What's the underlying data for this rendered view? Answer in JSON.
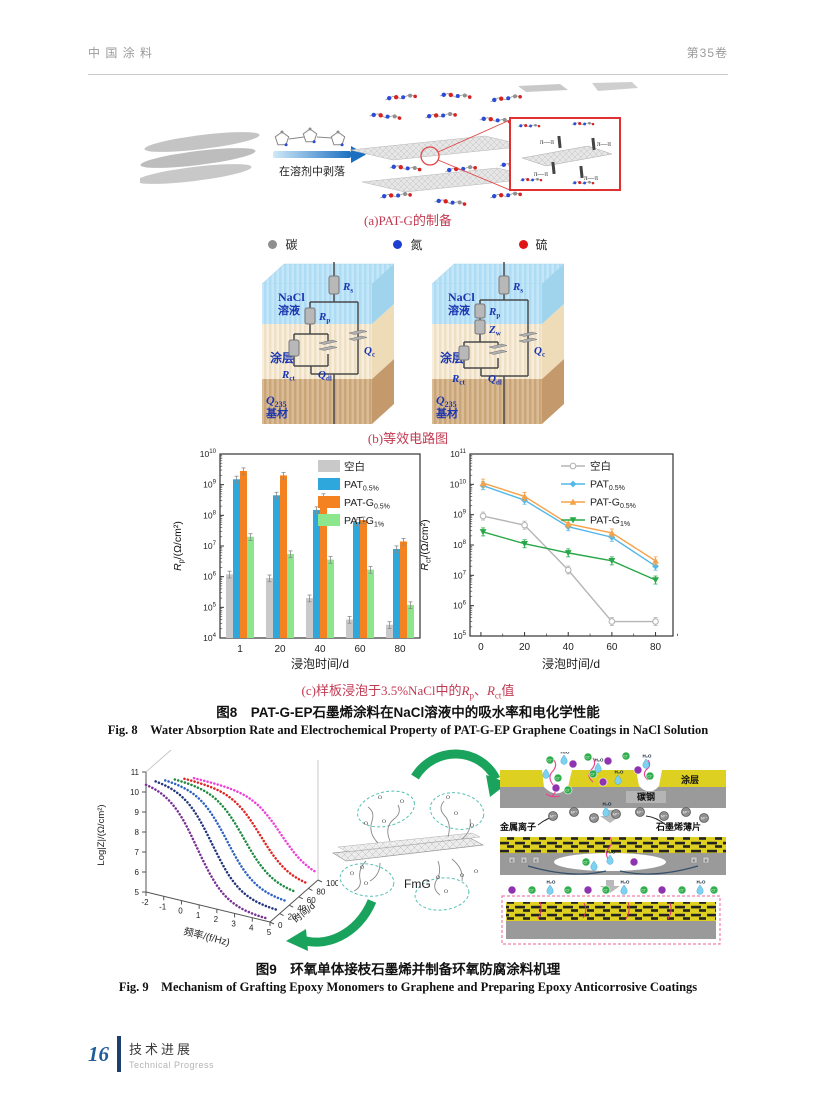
{
  "page": {
    "header_left": "中 国 涂 料",
    "header_right": "第35卷",
    "footer_page": "16",
    "footer_section_cn": "技术进展",
    "footer_section_en": "Technical Progress"
  },
  "fig8": {
    "panel_a": {
      "caption": "(a)PAT-G的制备",
      "arrow_label": "在溶剂中剥落",
      "pi_label": "π—π"
    },
    "atom_legend": [
      {
        "label": "碳",
        "color": "#8f8f8f"
      },
      {
        "label": "氮",
        "color": "#1f3fd0"
      },
      {
        "label": "硫",
        "color": "#e01616"
      }
    ],
    "panel_b": {
      "caption": "(b)等效电路图",
      "layers": {
        "solution_1": "NaCl",
        "solution_2": "溶液",
        "coating": "涂层",
        "substrate_main": "Q",
        "substrate_sub": "235",
        "substrate_2": "基材"
      },
      "elements": {
        "rs": {
          "m": "R",
          "s": "s"
        },
        "rp": {
          "m": "R",
          "s": "p"
        },
        "zw": {
          "m": "Z",
          "s": "w"
        },
        "rct": {
          "m": "R",
          "s": "ct"
        },
        "qdl": {
          "m": "Q",
          "s": "dl"
        },
        "qc": {
          "m": "Q",
          "s": "c"
        }
      }
    },
    "panel_c": {
      "caption_prefix": "(c)样板浸泡于3.5%NaCl中的",
      "r1": "R",
      "r1_sub": "p",
      "sep": "、",
      "r2": "R",
      "r2_sub": "ct",
      "suffix": "值"
    },
    "caption_cn": "图8　PAT-G-EP石墨烯涂料在NaCl溶液中的吸水率和电化学性能",
    "caption_en": "Fig. 8　Water Absorption Rate and Electrochemical Property of PAT-G-EP Graphene Coatings in NaCl Solution"
  },
  "fig9": {
    "fmg_label": "FmG",
    "o_atom": "O",
    "labels": {
      "coating": "涂层",
      "steel": "碳钢",
      "metal_ion": "金属离子",
      "graphene_sheet": "石墨烯薄片",
      "water": "H₂O",
      "cl": "Cl⁻",
      "metal": "Mⁿ⁺",
      "electron": "e"
    },
    "caption_cn": "图9　环氧单体接枝石墨烯并制备环氧防腐涂料机理",
    "caption_en": "Fig. 9　Mechanism of Grafting Epoxy Monomers to Graphene and Preparing Epoxy Anticorrosive Coatings"
  },
  "chart_data": [
    {
      "type": "bar",
      "title": "",
      "xlabel": "浸泡时间/d",
      "ylabel": {
        "var": "R",
        "sub": "p",
        "unit": "/(Ω/cm²)"
      },
      "yscale": "log",
      "ylim": [
        10000,
        10000000000
      ],
      "categories": [
        "1",
        "20",
        "40",
        "60",
        "80"
      ],
      "legend_position": "upper right",
      "grid": false,
      "series": [
        {
          "name": "空白",
          "sub": "",
          "color": "#c9c9c9",
          "values": [
            1200000,
            900000,
            200000,
            40000,
            27000
          ]
        },
        {
          "name": "PAT",
          "sub": "0.5%",
          "color": "#2ea8dc",
          "values": [
            1500000000,
            450000000,
            150000000,
            60000000,
            8000000
          ]
        },
        {
          "name": "PAT-G",
          "sub": "0.5%",
          "color": "#f58220",
          "values": [
            2800000000,
            2000000000,
            400000000,
            70000000,
            14000000
          ]
        },
        {
          "name": "PAT-G",
          "sub": "1%",
          "color": "#8ce68c",
          "values": [
            20000000,
            5500000,
            3600000,
            1700000,
            120000
          ]
        }
      ]
    },
    {
      "type": "line",
      "title": "",
      "xlabel": "浸泡时间/d",
      "ylabel": {
        "var": "R",
        "sub": "ct",
        "unit": "/(Ω/cm²)"
      },
      "yscale": "log",
      "ylim": [
        100000,
        100000000000
      ],
      "x": [
        1,
        20,
        40,
        60,
        80
      ],
      "xticks": [
        0,
        20,
        40,
        60,
        80
      ],
      "legend_position": "upper right",
      "grid": false,
      "series": [
        {
          "name": "空白",
          "sub": "",
          "color": "#b5b5b5",
          "marker": "circle-open",
          "values": [
            900000000,
            450000000,
            15000000,
            300000,
            300000
          ]
        },
        {
          "name": "PAT",
          "sub": "0.5%",
          "color": "#53b7e8",
          "marker": "diamond",
          "values": [
            9000000000,
            3000000000,
            400000000,
            180000000,
            20000000
          ]
        },
        {
          "name": "PAT-G",
          "sub": "0.5%",
          "color": "#f5a24b",
          "marker": "triangle",
          "values": [
            11000000000,
            4000000000,
            500000000,
            250000000,
            30000000
          ]
        },
        {
          "name": "PAT-G",
          "sub": "1%",
          "color": "#28a848",
          "marker": "triangle-down",
          "values": [
            270000000,
            110000000,
            55000000,
            30000000,
            7000000
          ]
        }
      ]
    },
    {
      "type": "3d-waterfall",
      "xlabel": "频率/(f/Hz)",
      "xticks": [
        -2,
        -1,
        0,
        1,
        2,
        3,
        4,
        5
      ],
      "depth_label": "时间/d",
      "depth_ticks": [
        0,
        20,
        40,
        60,
        80,
        100
      ],
      "zlabel": {
        "var": "Log|Z|",
        "sub": "",
        "unit": "/(Ω/cm²)"
      },
      "zticks": [
        5,
        6,
        7,
        8,
        9,
        10,
        11
      ],
      "zlim": [
        5,
        11
      ],
      "end_logZ": 5.1,
      "series": [
        {
          "time": 0,
          "color": "#7a2f96",
          "plateau_logZ": 10.5,
          "drop_mid_f": 0.9
        },
        {
          "time": 20,
          "color": "#23357f",
          "plateau_logZ": 10.2,
          "drop_mid_f": 1.2
        },
        {
          "time": 40,
          "color": "#2f62c4",
          "plateau_logZ": 9.8,
          "drop_mid_f": 1.5
        },
        {
          "time": 60,
          "color": "#1d8a40",
          "plateau_logZ": 9.4,
          "drop_mid_f": 1.9
        },
        {
          "time": 80,
          "color": "#e02424",
          "plateau_logZ": 9.0,
          "drop_mid_f": 2.3
        },
        {
          "time": 100,
          "color": "#ef3fd8",
          "plateau_logZ": 8.6,
          "drop_mid_f": 2.9
        }
      ]
    }
  ]
}
